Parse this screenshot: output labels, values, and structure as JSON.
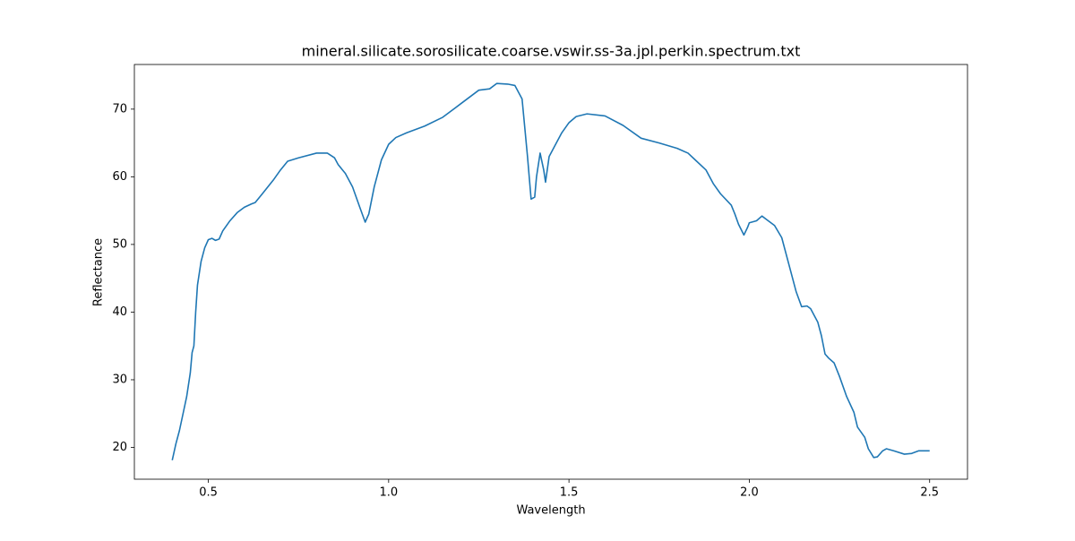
{
  "chart_data": {
    "type": "line",
    "title": "mineral.silicate.sorosilicate.coarse.vswir.ss-3a.jpl.perkin.spectrum.txt",
    "xlabel": "Wavelength",
    "ylabel": "Reflectance",
    "x": [
      0.4,
      0.41,
      0.42,
      0.43,
      0.44,
      0.45,
      0.455,
      0.46,
      0.465,
      0.47,
      0.48,
      0.49,
      0.5,
      0.51,
      0.52,
      0.53,
      0.54,
      0.56,
      0.58,
      0.6,
      0.62,
      0.63,
      0.65,
      0.68,
      0.7,
      0.72,
      0.75,
      0.8,
      0.83,
      0.85,
      0.86,
      0.88,
      0.9,
      0.92,
      0.935,
      0.945,
      0.96,
      0.98,
      1.0,
      1.02,
      1.05,
      1.1,
      1.15,
      1.2,
      1.25,
      1.28,
      1.3,
      1.33,
      1.35,
      1.37,
      1.385,
      1.395,
      1.405,
      1.41,
      1.42,
      1.43,
      1.435,
      1.445,
      1.46,
      1.48,
      1.5,
      1.52,
      1.55,
      1.6,
      1.65,
      1.7,
      1.75,
      1.8,
      1.83,
      1.85,
      1.88,
      1.9,
      1.92,
      1.95,
      1.96,
      1.97,
      1.985,
      1.995,
      2.0,
      2.02,
      2.035,
      2.05,
      2.07,
      2.09,
      2.11,
      2.13,
      2.145,
      2.16,
      2.17,
      2.19,
      2.2,
      2.21,
      2.22,
      2.235,
      2.25,
      2.27,
      2.29,
      2.3,
      2.32,
      2.33,
      2.345,
      2.355,
      2.37,
      2.38,
      2.4,
      2.43,
      2.45,
      2.47,
      2.5
    ],
    "series": [
      {
        "color": "#1f77b4",
        "values": [
          18.1,
          20.5,
          22.5,
          25.0,
          27.5,
          31,
          34,
          35,
          40,
          44,
          47.5,
          49.5,
          50.7,
          50.9,
          50.6,
          50.8,
          52,
          53.5,
          54.7,
          55.5,
          56,
          56.2,
          57.5,
          59.5,
          61,
          62.3,
          62.8,
          63.5,
          63.5,
          62.8,
          61.8,
          60.5,
          58.5,
          55.5,
          53.3,
          54.5,
          58.5,
          62.5,
          64.8,
          65.8,
          66.5,
          67.5,
          68.8,
          70.8,
          72.8,
          73,
          73.8,
          73.7,
          73.5,
          71.5,
          63,
          56.7,
          57,
          60,
          63.5,
          61,
          59.2,
          63,
          64.5,
          66.5,
          68,
          68.9,
          69.3,
          69,
          67.6,
          65.7,
          65.0,
          64.2,
          63.5,
          62.5,
          61,
          59,
          57.5,
          55.8,
          54.5,
          53,
          51.4,
          52.5,
          53.2,
          53.5,
          54.2,
          53.6,
          52.8,
          51,
          47,
          43,
          40.8,
          40.9,
          40.5,
          38.5,
          36.5,
          33.8,
          33.2,
          32.5,
          30.5,
          27.5,
          25.2,
          23.0,
          21.5,
          19.8,
          18.5,
          18.6,
          19.5,
          19.8,
          19.5,
          19.0,
          19.1,
          19.5,
          19.5
        ]
      }
    ],
    "xlim": [
      0.295,
      2.605
    ],
    "ylim": [
      15.3,
      76.6
    ],
    "xticks": [
      0.5,
      {
        "value": 1.0,
        "label": "1.0"
      },
      1.5,
      {
        "value": 2.0,
        "label": "2.0"
      },
      2.5
    ],
    "yticks": [
      20,
      30,
      40,
      50,
      60,
      70
    ]
  }
}
